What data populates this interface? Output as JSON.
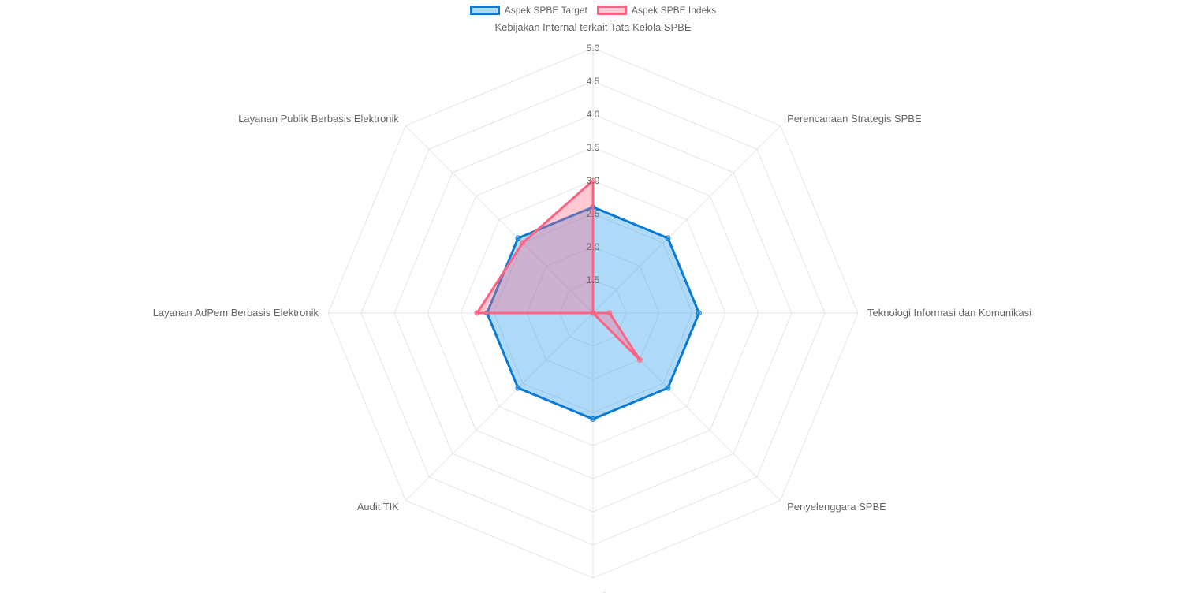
{
  "legend": [
    {
      "label": "Aspek SPBE Target",
      "stroke": "#0a7bd4",
      "fill": "rgba(54,162,235,0.4)"
    },
    {
      "label": "Aspek SPBE Indeks",
      "stroke": "#ff6384",
      "fill": "rgba(255,99,132,0.35)"
    }
  ],
  "chart_data": {
    "type": "radar",
    "title": "",
    "categories": [
      "Kebijakan Internal terkait Tata Kelola SPBE",
      "Perencanaan Strategis SPBE",
      "Teknologi Informasi dan Komunikasi",
      "Penyelenggara SPBE",
      "Penerapan Manajemen SPBE",
      "Audit TIK",
      "Layanan AdPem Berbasis Elektronik",
      "Layanan Publik Berbasis Elektronik"
    ],
    "series": [
      {
        "name": "Aspek SPBE Target",
        "values": [
          2.6,
          2.6,
          2.6,
          2.6,
          2.6,
          2.6,
          2.6,
          2.6
        ],
        "color": "#0a7bd4",
        "fill": "rgba(54,162,235,0.4)"
      },
      {
        "name": "Aspek SPBE Indeks",
        "values": [
          3.0,
          1.0,
          1.25,
          2.0,
          1.0,
          1.0,
          2.75,
          2.5
        ],
        "color": "#ff6384",
        "fill": "rgba(255,99,132,0.35)"
      }
    ],
    "scale": {
      "min": 1.0,
      "max": 5.0,
      "step": 0.5
    },
    "tick_labels": [
      "1.5",
      "2.0",
      "2.5",
      "3.0",
      "3.5",
      "4.0",
      "4.5",
      "5.0"
    ],
    "grid": true,
    "legend_position": "top"
  }
}
